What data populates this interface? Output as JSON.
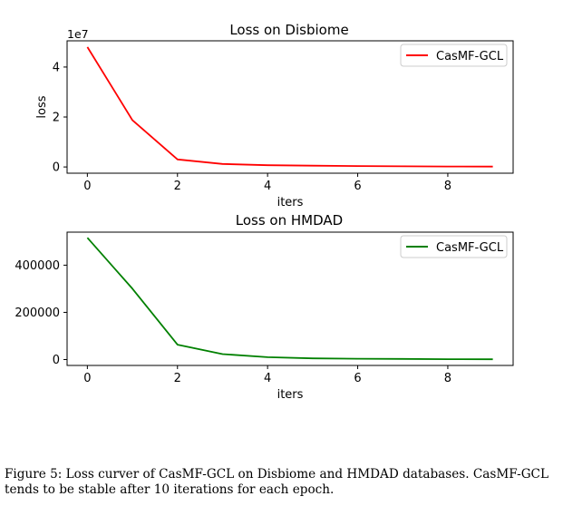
{
  "chart_data": [
    {
      "type": "line",
      "title": "Loss on Disbiome",
      "xlabel": "iters",
      "ylabel": "loss",
      "y_offset_label": "1e7",
      "x": [
        0,
        1,
        2,
        3,
        4,
        5,
        6,
        7,
        8,
        9
      ],
      "series": [
        {
          "name": "CasMF-GCL",
          "color": "#ff0000",
          "values": [
            4.8,
            1.87,
            0.3,
            0.12,
            0.07,
            0.05,
            0.035,
            0.025,
            0.02,
            0.015
          ]
        }
      ],
      "xlim": [
        -0.45,
        9.45
      ],
      "ylim": [
        -0.25,
        5.05
      ],
      "xticks": [
        0,
        2,
        4,
        6,
        8
      ],
      "xtick_labels": [
        "0",
        "2",
        "4",
        "6",
        "8"
      ],
      "yticks": [
        0,
        2,
        4
      ],
      "ytick_labels": [
        "0",
        "2",
        "4"
      ],
      "legend": "top-right",
      "grid": false
    },
    {
      "type": "line",
      "title": "Loss on HMDAD",
      "xlabel": "iters",
      "ylabel": "",
      "x": [
        0,
        1,
        2,
        3,
        4,
        5,
        6,
        7,
        8,
        9
      ],
      "series": [
        {
          "name": "CasMF-GCL",
          "color": "#008000",
          "values": [
            516000,
            300000,
            63000,
            23000,
            10000,
            5000,
            3500,
            2500,
            1500,
            1000
          ]
        }
      ],
      "xlim": [
        -0.45,
        9.45
      ],
      "ylim": [
        -25000,
        540000
      ],
      "xticks": [
        0,
        2,
        4,
        6,
        8
      ],
      "xtick_labels": [
        "0",
        "2",
        "4",
        "6",
        "8"
      ],
      "yticks": [
        0,
        200000,
        400000
      ],
      "ytick_labels": [
        "0",
        "200000",
        "400000"
      ],
      "legend": "top-right",
      "grid": false
    }
  ],
  "caption": "Figure 5: Loss curver of CasMF-GCL on Disbiome and HMDAD databases. CasMF-GCL tends to be stable after 10 iterations for each epoch."
}
